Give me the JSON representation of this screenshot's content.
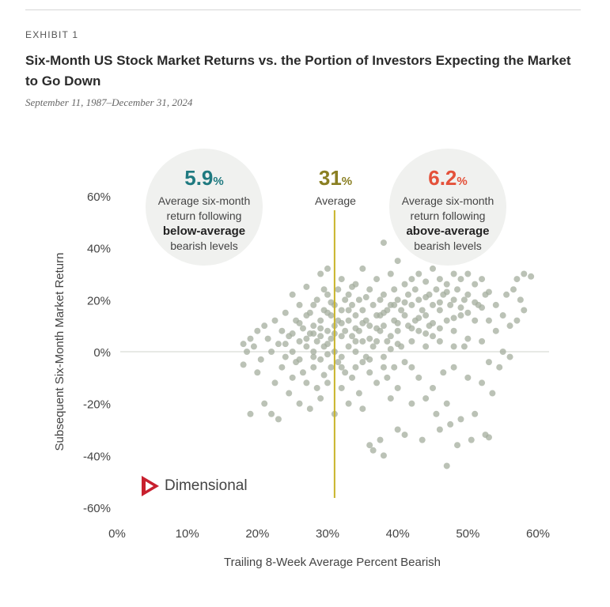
{
  "header": {
    "exhibit": "EXHIBIT 1",
    "title": "Six-Month US Stock Market Returns vs. the Portion of Investors Expecting the Market to Go Down",
    "subtitle": "September 11, 1987–December 31, 2024"
  },
  "annotations": {
    "left": {
      "value": "5.9",
      "unit": "%",
      "line1": "Average six-month",
      "line2": "return following",
      "line3": "below-average",
      "line4": "bearish levels",
      "color": "#1f7a80"
    },
    "middle": {
      "value": "31",
      "unit": "%",
      "label": "Average",
      "color": "#8a7f22"
    },
    "right": {
      "value": "6.2",
      "unit": "%",
      "line1": "Average six-month",
      "line2": "return following",
      "line3": "above-average",
      "line4": "bearish levels",
      "color": "#e4513a"
    }
  },
  "logo": {
    "text": "Dimensional",
    "color": "#c8202f"
  },
  "chart_data": {
    "type": "scatter",
    "xlabel": "Trailing 8-Week Average Percent Bearish",
    "ylabel": "Subsequent Six-Month Market Return",
    "xlim": [
      0,
      60
    ],
    "ylim": [
      -60,
      60
    ],
    "x_ticks": [
      "0%",
      "10%",
      "20%",
      "30%",
      "40%",
      "50%",
      "60%"
    ],
    "y_ticks": [
      "60%",
      "40%",
      "20%",
      "0%",
      "-20%",
      "-40%",
      "-60%"
    ],
    "average_x": 31,
    "point_color": "#a4ad9e",
    "line_color": "#c8b42a",
    "points": [
      [
        18,
        3
      ],
      [
        18,
        -5
      ],
      [
        18.5,
        0
      ],
      [
        19,
        -24
      ],
      [
        19,
        5
      ],
      [
        19.5,
        2
      ],
      [
        20,
        -8
      ],
      [
        20,
        8
      ],
      [
        20.5,
        -3
      ],
      [
        21,
        10
      ],
      [
        21,
        -20
      ],
      [
        21.5,
        5
      ],
      [
        22,
        0
      ],
      [
        22,
        -24
      ],
      [
        22.5,
        12
      ],
      [
        22.5,
        -12
      ],
      [
        23,
        3
      ],
      [
        23,
        -26
      ],
      [
        23.5,
        8
      ],
      [
        23.5,
        -6
      ],
      [
        24,
        15
      ],
      [
        24,
        -2
      ],
      [
        24.5,
        6
      ],
      [
        24.5,
        -16
      ],
      [
        25,
        22
      ],
      [
        25,
        0
      ],
      [
        25,
        -10
      ],
      [
        25.5,
        12
      ],
      [
        25.5,
        -4
      ],
      [
        26,
        18
      ],
      [
        26,
        4
      ],
      [
        26,
        -20
      ],
      [
        26.5,
        9
      ],
      [
        26.5,
        -8
      ],
      [
        27,
        25
      ],
      [
        27,
        14
      ],
      [
        27,
        2
      ],
      [
        27,
        -12
      ],
      [
        27.5,
        7
      ],
      [
        27.5,
        -22
      ],
      [
        28,
        18
      ],
      [
        28,
        10
      ],
      [
        28,
        0
      ],
      [
        28,
        -6
      ],
      [
        28.5,
        20
      ],
      [
        28.5,
        4
      ],
      [
        28.5,
        -14
      ],
      [
        29,
        30
      ],
      [
        29,
        12
      ],
      [
        29,
        6
      ],
      [
        29,
        -3
      ],
      [
        29,
        -18
      ],
      [
        29.5,
        16
      ],
      [
        29.5,
        2
      ],
      [
        29.5,
        -9
      ],
      [
        30,
        32
      ],
      [
        30,
        22
      ],
      [
        30,
        8
      ],
      [
        30,
        -1
      ],
      [
        30,
        -12
      ],
      [
        30.5,
        14
      ],
      [
        30.5,
        5
      ],
      [
        30.5,
        -6
      ],
      [
        31,
        18
      ],
      [
        31,
        10
      ],
      [
        31,
        0
      ],
      [
        31,
        -24
      ],
      [
        31.5,
        24
      ],
      [
        31.5,
        12
      ],
      [
        31.5,
        -4
      ],
      [
        32,
        28
      ],
      [
        32,
        16
      ],
      [
        32,
        6
      ],
      [
        32,
        -2
      ],
      [
        32,
        -14
      ],
      [
        32.5,
        20
      ],
      [
        32.5,
        8
      ],
      [
        32.5,
        -8
      ],
      [
        33,
        22
      ],
      [
        33,
        12
      ],
      [
        33,
        2
      ],
      [
        33,
        -20
      ],
      [
        33.5,
        18
      ],
      [
        33.5,
        6
      ],
      [
        33.5,
        -10
      ],
      [
        34,
        26
      ],
      [
        34,
        14
      ],
      [
        34,
        0
      ],
      [
        34,
        -6
      ],
      [
        34.5,
        20
      ],
      [
        34.5,
        8
      ],
      [
        34.5,
        -16
      ],
      [
        35,
        32
      ],
      [
        35,
        16
      ],
      [
        35,
        4
      ],
      [
        35,
        -4
      ],
      [
        35,
        -22
      ],
      [
        35.5,
        12
      ],
      [
        35.5,
        -2
      ],
      [
        36,
        24
      ],
      [
        36,
        10
      ],
      [
        36,
        -8
      ],
      [
        36,
        -36
      ],
      [
        36.5,
        18
      ],
      [
        36.5,
        2
      ],
      [
        36.5,
        -38
      ],
      [
        37,
        28
      ],
      [
        37,
        14
      ],
      [
        37,
        4
      ],
      [
        37,
        -12
      ],
      [
        37.5,
        20
      ],
      [
        37.5,
        8
      ],
      [
        37.5,
        -34
      ],
      [
        38,
        42
      ],
      [
        38,
        22
      ],
      [
        38,
        10
      ],
      [
        38,
        -2
      ],
      [
        38,
        -40
      ],
      [
        38.5,
        16
      ],
      [
        38.5,
        4
      ],
      [
        38.5,
        -10
      ],
      [
        39,
        30
      ],
      [
        39,
        18
      ],
      [
        39,
        6
      ],
      [
        39,
        -18
      ],
      [
        39.5,
        24
      ],
      [
        39.5,
        12
      ],
      [
        39.5,
        -6
      ],
      [
        40,
        35
      ],
      [
        40,
        20
      ],
      [
        40,
        8
      ],
      [
        40,
        -14
      ],
      [
        40,
        -30
      ],
      [
        40.5,
        16
      ],
      [
        40.5,
        2
      ],
      [
        41,
        26
      ],
      [
        41,
        14
      ],
      [
        41,
        -4
      ],
      [
        41,
        -32
      ],
      [
        41.5,
        22
      ],
      [
        41.5,
        10
      ],
      [
        42,
        28
      ],
      [
        42,
        18
      ],
      [
        42,
        4
      ],
      [
        42,
        -20
      ],
      [
        42.5,
        24
      ],
      [
        42.5,
        12
      ],
      [
        43,
        30
      ],
      [
        43,
        20
      ],
      [
        43,
        8
      ],
      [
        43,
        -10
      ],
      [
        43.5,
        16
      ],
      [
        43.5,
        -34
      ],
      [
        44,
        27
      ],
      [
        44,
        14
      ],
      [
        44,
        2
      ],
      [
        44,
        -18
      ],
      [
        44.5,
        22
      ],
      [
        44.5,
        10
      ],
      [
        45,
        32
      ],
      [
        45,
        18
      ],
      [
        45,
        6
      ],
      [
        45,
        -14
      ],
      [
        45.5,
        24
      ],
      [
        45.5,
        -24
      ],
      [
        46,
        28
      ],
      [
        46,
        16
      ],
      [
        46,
        4
      ],
      [
        46,
        -30
      ],
      [
        46.5,
        22
      ],
      [
        46.5,
        -8
      ],
      [
        47,
        26
      ],
      [
        47,
        12
      ],
      [
        47,
        -20
      ],
      [
        47,
        -44
      ],
      [
        47.5,
        18
      ],
      [
        47.5,
        -28
      ],
      [
        48,
        30
      ],
      [
        48,
        20
      ],
      [
        48,
        8
      ],
      [
        48,
        -6
      ],
      [
        48.5,
        24
      ],
      [
        48.5,
        -36
      ],
      [
        49,
        28
      ],
      [
        49,
        14
      ],
      [
        49,
        -26
      ],
      [
        49.5,
        20
      ],
      [
        49.5,
        2
      ],
      [
        50,
        30
      ],
      [
        50,
        22
      ],
      [
        50,
        -10
      ],
      [
        50.5,
        -34
      ],
      [
        51,
        26
      ],
      [
        51,
        12
      ],
      [
        51,
        -24
      ],
      [
        51.5,
        18
      ],
      [
        52,
        28
      ],
      [
        52,
        4
      ],
      [
        52,
        -12
      ],
      [
        52.5,
        22
      ],
      [
        52.5,
        -32
      ],
      [
        53,
        12
      ],
      [
        53,
        -4
      ],
      [
        53,
        -33
      ],
      [
        53.5,
        -16
      ],
      [
        54,
        18
      ],
      [
        54,
        8
      ],
      [
        54.5,
        -6
      ],
      [
        55,
        14
      ],
      [
        55,
        0
      ],
      [
        55.5,
        22
      ],
      [
        56,
        10
      ],
      [
        56,
        -2
      ],
      [
        56.5,
        24
      ],
      [
        57,
        12
      ],
      [
        57,
        28
      ],
      [
        57.5,
        20
      ],
      [
        58,
        16
      ],
      [
        58,
        30
      ],
      [
        59,
        29
      ],
      [
        24,
        3
      ],
      [
        25,
        7
      ],
      [
        26,
        11
      ],
      [
        27,
        5
      ],
      [
        28,
        -2
      ],
      [
        29,
        9
      ],
      [
        30,
        15
      ],
      [
        31,
        7
      ],
      [
        32,
        11
      ],
      [
        33,
        16
      ],
      [
        34,
        9
      ],
      [
        35,
        11
      ],
      [
        36,
        5
      ],
      [
        37,
        9
      ],
      [
        38,
        15
      ],
      [
        39,
        1
      ],
      [
        40,
        11
      ],
      [
        41,
        19
      ],
      [
        42,
        9
      ],
      [
        43,
        13
      ],
      [
        44,
        21
      ],
      [
        45,
        11
      ],
      [
        46,
        19
      ],
      [
        47,
        23
      ],
      [
        48,
        13
      ],
      [
        49,
        17
      ],
      [
        50,
        15
      ],
      [
        51,
        19
      ],
      [
        52,
        17
      ],
      [
        53,
        23
      ],
      [
        26,
        -3
      ],
      [
        28,
        7
      ],
      [
        30,
        3
      ],
      [
        32,
        -6
      ],
      [
        34,
        4
      ],
      [
        36,
        -3
      ],
      [
        38,
        -6
      ],
      [
        40,
        3
      ],
      [
        42,
        -6
      ],
      [
        44,
        7
      ],
      [
        46,
        9
      ],
      [
        48,
        2
      ],
      [
        50,
        5
      ],
      [
        30.5,
        19
      ],
      [
        29.5,
        24
      ],
      [
        27.5,
        15
      ],
      [
        33.5,
        25
      ],
      [
        35.5,
        21
      ],
      [
        37.5,
        14
      ],
      [
        39.5,
        18
      ]
    ]
  }
}
